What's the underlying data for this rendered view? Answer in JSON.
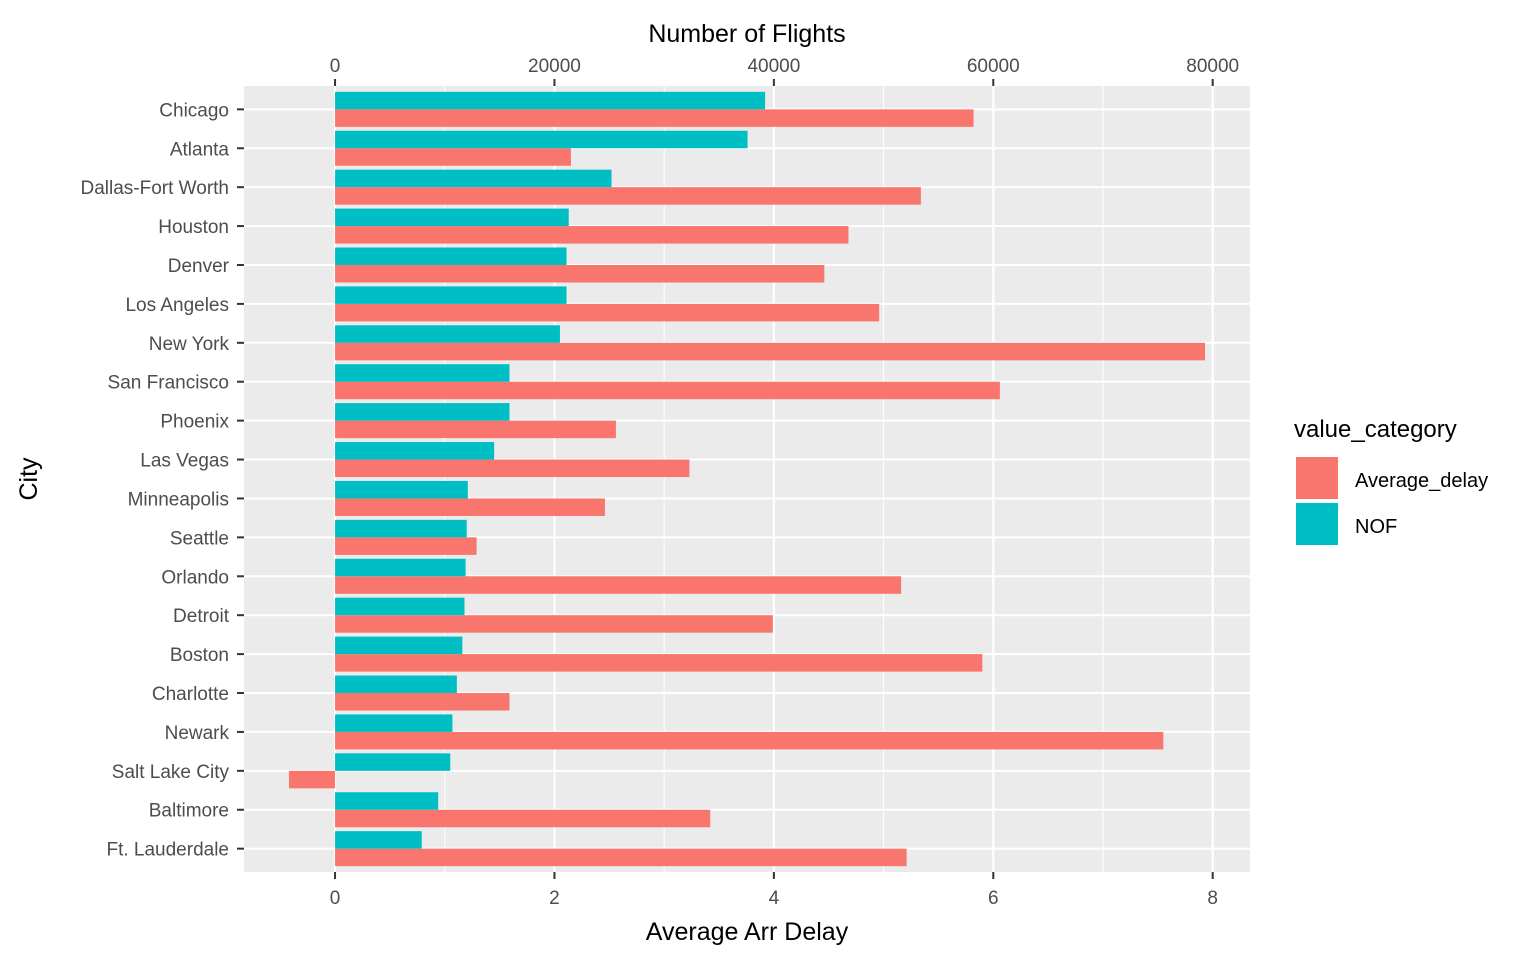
{
  "chart_data": {
    "type": "bar",
    "orientation": "horizontal",
    "grid": true,
    "legend_placement": "right",
    "categories": [
      "Chicago",
      "Atlanta",
      "Dallas-Fort Worth",
      "Houston",
      "Denver",
      "Los Angeles",
      "New York",
      "San Francisco",
      "Phoenix",
      "Las Vegas",
      "Minneapolis",
      "Seattle",
      "Orlando",
      "Detroit",
      "Boston",
      "Charlotte",
      "Newark",
      "Salt Lake City",
      "Baltimore",
      "Ft. Lauderdale"
    ],
    "series": [
      {
        "name": "Average_delay",
        "axis": "bottom",
        "color": "#F8766D",
        "values": [
          5.82,
          2.15,
          5.34,
          4.68,
          4.46,
          4.96,
          7.93,
          6.06,
          2.56,
          3.23,
          2.46,
          1.29,
          5.16,
          3.99,
          5.9,
          1.59,
          7.55,
          -0.42,
          3.42,
          5.21
        ]
      },
      {
        "name": "NOF",
        "axis": "top",
        "color": "#00BFC4",
        "values": [
          39200,
          37600,
          25200,
          21300,
          21100,
          21100,
          20500,
          15900,
          15900,
          14500,
          12100,
          12000,
          11900,
          11800,
          11600,
          11100,
          10700,
          10500,
          9400,
          7900
        ]
      }
    ],
    "bottom_axis": {
      "label": "Average Arr Delay",
      "ticks": [
        "0",
        "2",
        "4",
        "6",
        "8"
      ],
      "tick_values": [
        0,
        2,
        4,
        6,
        8
      ],
      "range": [
        -0.83,
        8.34
      ]
    },
    "top_axis": {
      "label": "Number of Flights",
      "ticks": [
        "0",
        "20000",
        "40000",
        "60000",
        "80000"
      ],
      "tick_values": [
        0,
        20000,
        40000,
        60000,
        80000
      ],
      "range": [
        -8300,
        83400
      ]
    },
    "ylabel": "City",
    "legend": {
      "title": "value_category",
      "items": [
        "Average_delay",
        "NOF"
      ]
    }
  }
}
